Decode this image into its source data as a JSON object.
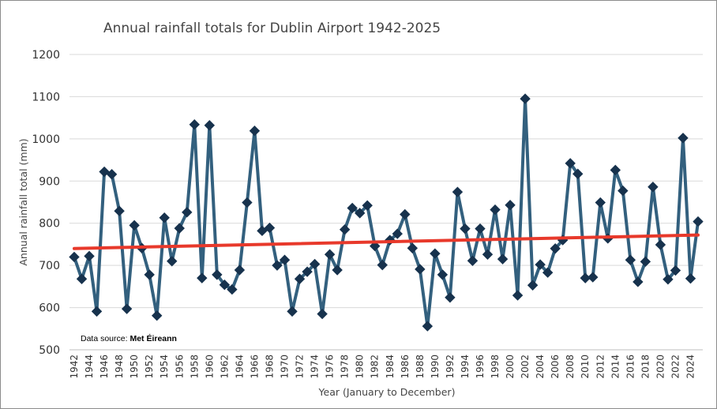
{
  "chart_data": {
    "type": "line",
    "title": "Annual rainfall totals for Dublin Airport 1942-2025",
    "xlabel": "Year (January to December)",
    "ylabel": "Annual rainfall total (mm)",
    "ylim": [
      500,
      1200
    ],
    "yticks": [
      "500",
      "600",
      "700",
      "800",
      "900",
      "1000",
      "1100",
      "1200"
    ],
    "grid": true,
    "x": [
      1942,
      1943,
      1944,
      1945,
      1946,
      1947,
      1948,
      1949,
      1950,
      1951,
      1952,
      1953,
      1954,
      1955,
      1956,
      1957,
      1958,
      1959,
      1960,
      1961,
      1962,
      1963,
      1964,
      1965,
      1966,
      1967,
      1968,
      1969,
      1970,
      1971,
      1972,
      1973,
      1974,
      1975,
      1976,
      1977,
      1978,
      1979,
      1980,
      1981,
      1982,
      1983,
      1984,
      1985,
      1986,
      1987,
      1988,
      1989,
      1990,
      1991,
      1992,
      1993,
      1994,
      1995,
      1996,
      1997,
      1998,
      1999,
      2000,
      2001,
      2002,
      2003,
      2004,
      2005,
      2006,
      2007,
      2008,
      2009,
      2010,
      2011,
      2012,
      2013,
      2014,
      2015,
      2016,
      2017,
      2018,
      2019,
      2020,
      2021,
      2022,
      2023,
      2024,
      2025
    ],
    "xtick_labels": [
      "1942",
      "1944",
      "1946",
      "1948",
      "1950",
      "1952",
      "1954",
      "1956",
      "1958",
      "1960",
      "1962",
      "1964",
      "1966",
      "1968",
      "1970",
      "1972",
      "1974",
      "1976",
      "1978",
      "1980",
      "1982",
      "1984",
      "1986",
      "1988",
      "1990",
      "1992",
      "1994",
      "1996",
      "1998",
      "2000",
      "2002",
      "2004",
      "2006",
      "2008",
      "2010",
      "2012",
      "2014",
      "2016",
      "2018",
      "2020",
      "2022",
      "2024"
    ],
    "series": [
      {
        "name": "Annual rainfall total",
        "color": "#33607e",
        "marker_color": "#17324d",
        "values": [
          720,
          668,
          722,
          591,
          922,
          916,
          829,
          597,
          795,
          741,
          678,
          581,
          813,
          710,
          788,
          826,
          1034,
          670,
          1032,
          678,
          654,
          643,
          689,
          849,
          1019,
          782,
          789,
          700,
          713,
          591,
          668,
          685,
          703,
          585,
          726,
          689,
          785,
          836,
          824,
          842,
          746,
          701,
          760,
          775,
          821,
          741,
          691,
          556,
          728,
          678,
          624,
          874,
          787,
          711,
          787,
          726,
          832,
          715,
          843,
          629,
          1095,
          653,
          702,
          683,
          740,
          760,
          942,
          917,
          670,
          672,
          849,
          764,
          926,
          877,
          713,
          661,
          709,
          886,
          749,
          667,
          688,
          1002,
          669,
          804
        ]
      },
      {
        "name": "Linear trend",
        "type": "trendline",
        "color": "#e8392b",
        "start": 740,
        "end": 772
      }
    ],
    "annotation": {
      "label": "Data source: ",
      "value": "Met Éireann"
    }
  }
}
